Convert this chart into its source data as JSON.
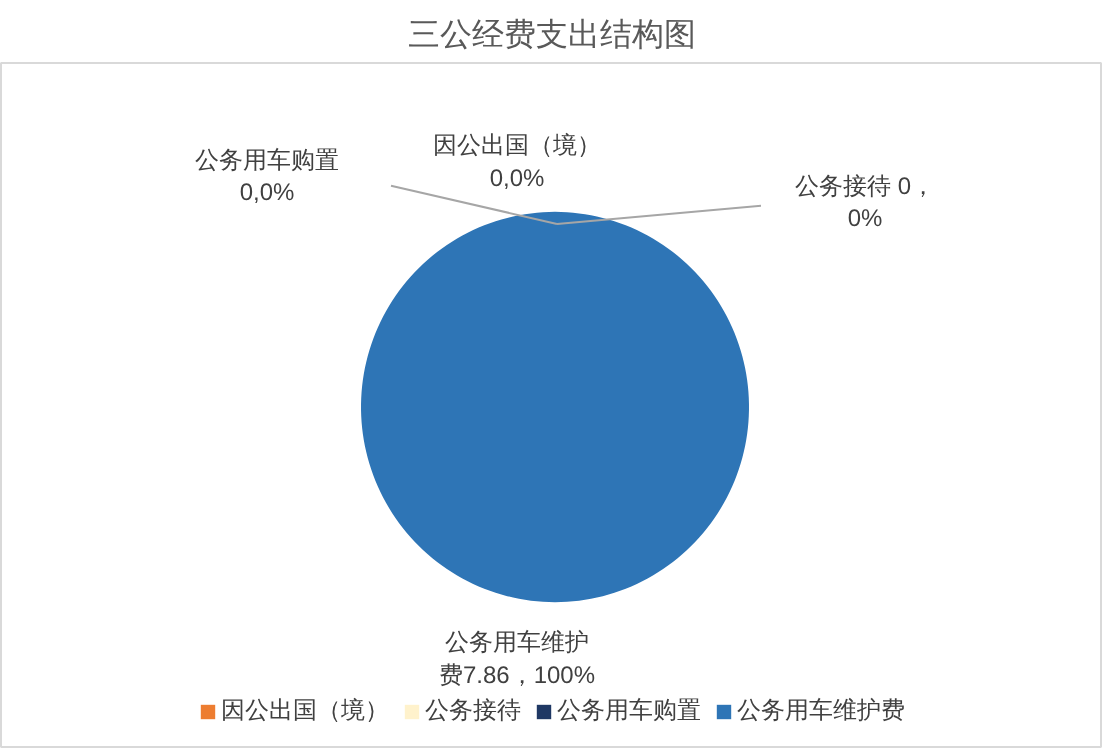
{
  "chart_data": {
    "type": "pie",
    "title": "三公经费支出结构图",
    "categories": [
      "因公出国（境）",
      "公务接待",
      "公务用车购置",
      "公务用车维护费"
    ],
    "values": [
      0,
      0,
      0,
      7.86
    ],
    "colors": [
      "#ed7d31",
      "#fff2cc",
      "#1f3864",
      "#2e75b6"
    ],
    "value_labels": [
      "因公出国（境）0,0%",
      "公务接待 0，0%",
      "公务用车购置0,0%",
      "公务用车维护费7.86，100%"
    ],
    "legend": "bottom"
  }
}
